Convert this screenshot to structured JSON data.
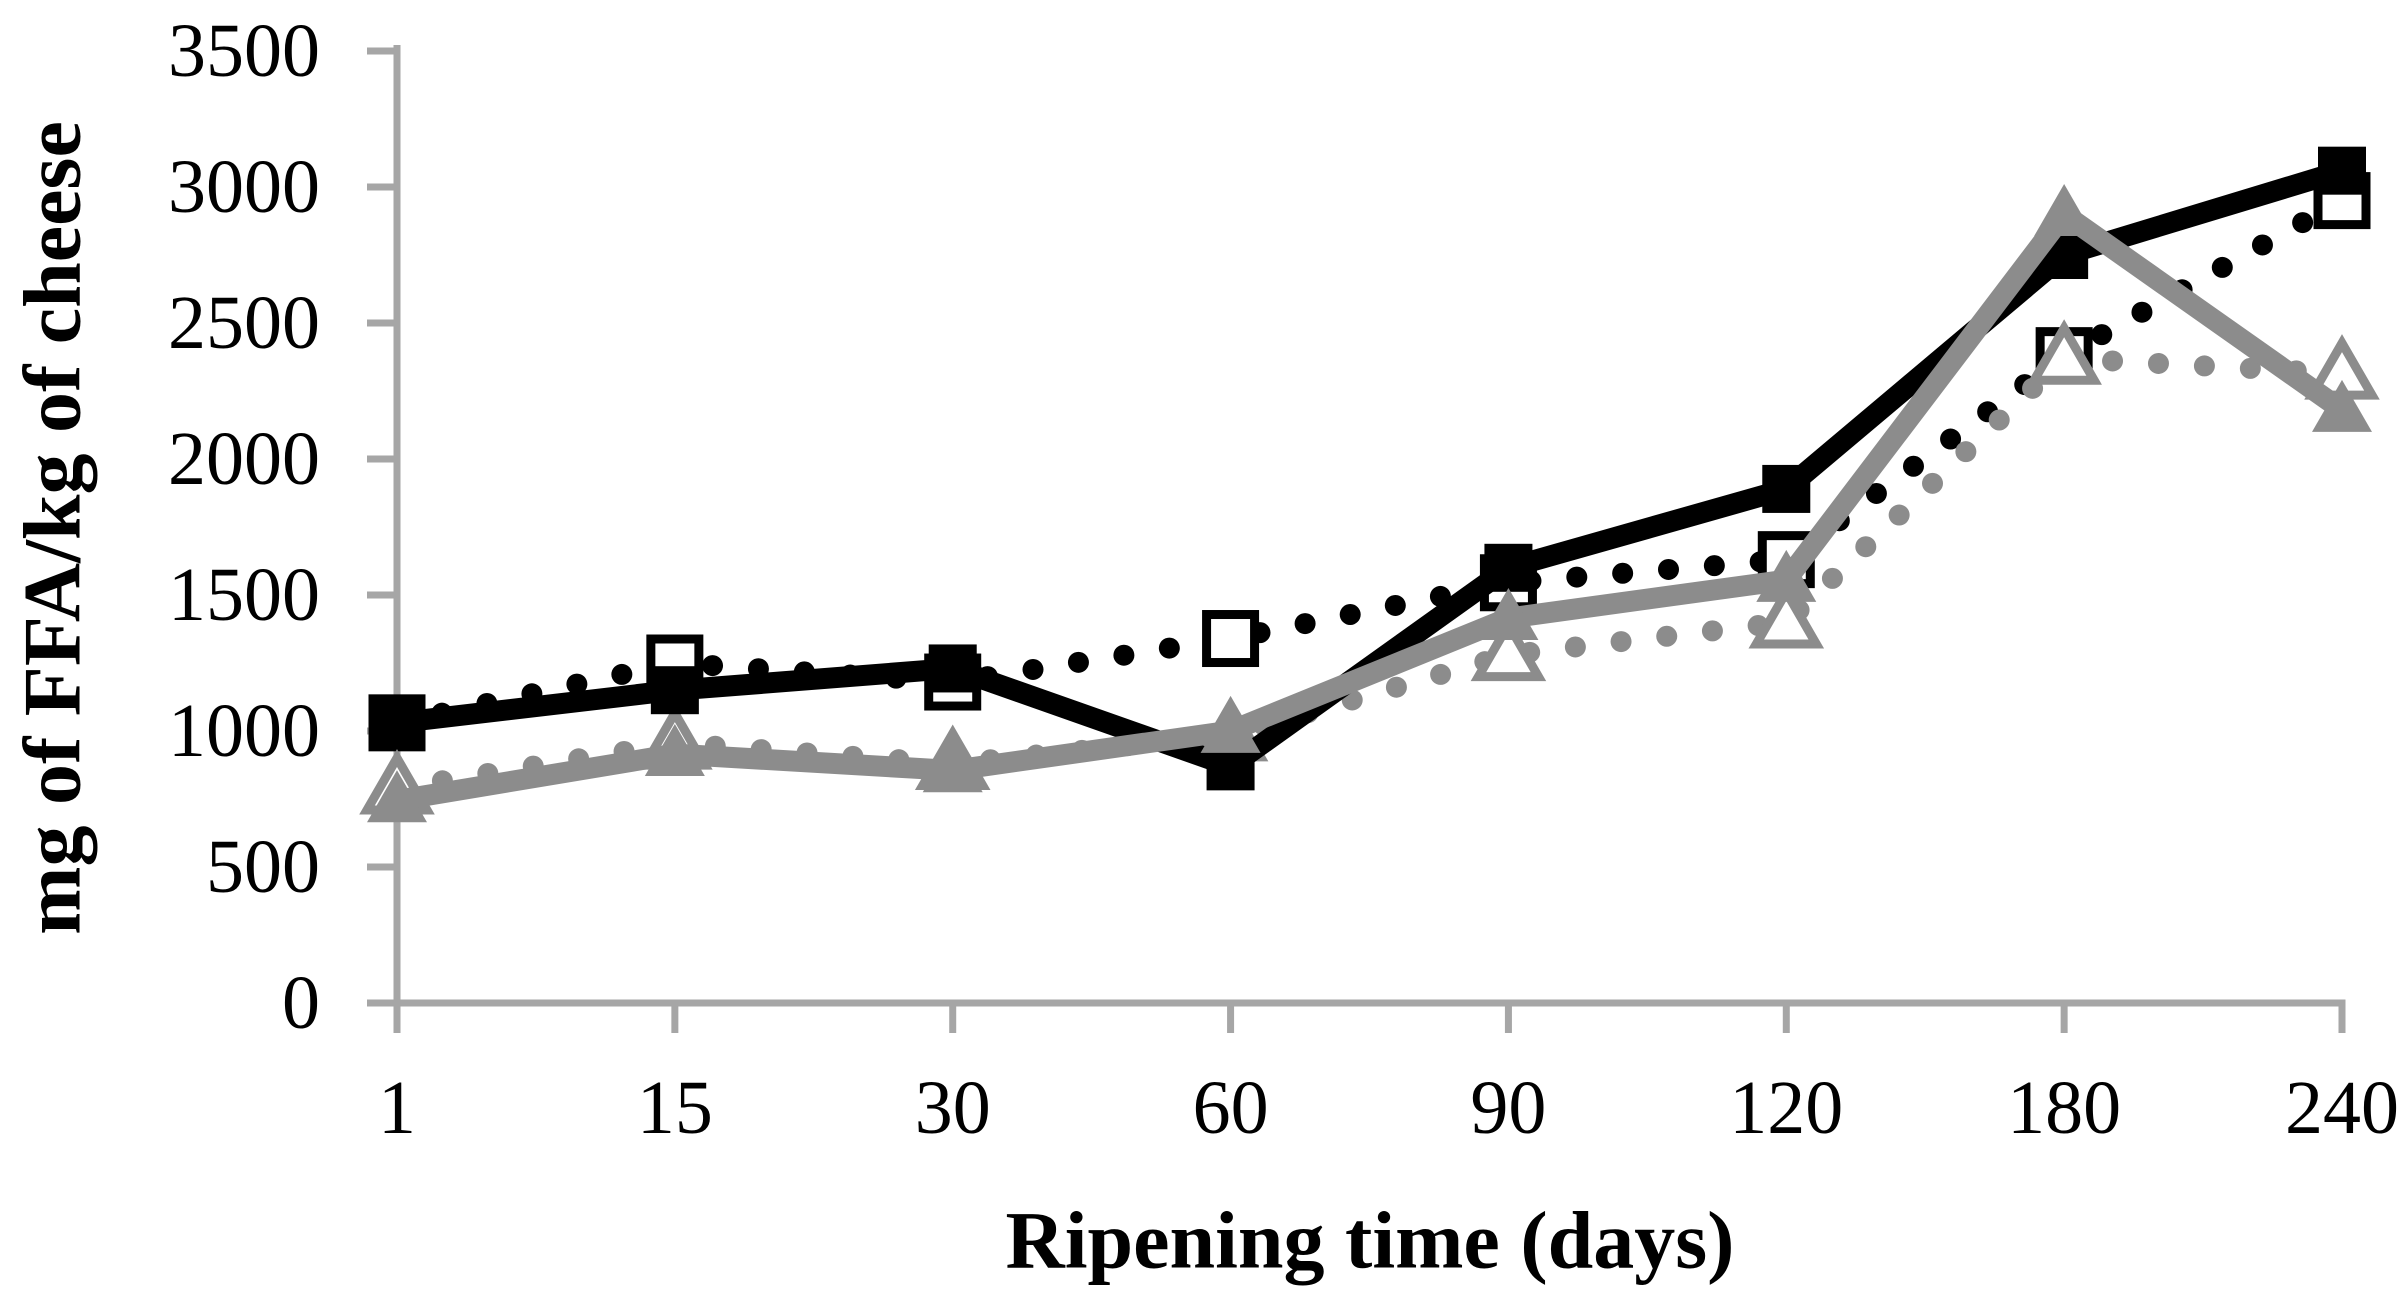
{
  "chart_data": {
    "type": "line",
    "title": "",
    "xlabel": "Ripening time (days)",
    "ylabel": "mg of FFA/kg of cheese",
    "categories": [
      1,
      15,
      30,
      60,
      90,
      120,
      180,
      240
    ],
    "yticks": [
      0,
      500,
      1000,
      1500,
      2000,
      2500,
      3000,
      3500
    ],
    "ylim": [
      0,
      3500
    ],
    "grid": false,
    "legend_position": "none",
    "axis_color": "#A6A6A6",
    "background_color": "#FFFFFF",
    "series": [
      {
        "name": "black dotted - open squares",
        "line": "dotted",
        "marker": "open-square",
        "color": "#000000",
        "values": [
          1030,
          1250,
          1180,
          1340,
          1545,
          1630,
          2380,
          2950
        ]
      },
      {
        "name": "gray dotted - open triangles",
        "line": "dotted",
        "marker": "open-triangle",
        "color": "#8C8C8C",
        "values": [
          790,
          955,
          880,
          985,
          1280,
          1400,
          2370,
          2315
        ]
      },
      {
        "name": "black solid - filled squares",
        "line": "solid",
        "marker": "filled-square",
        "color": "#000000",
        "values": [
          1030,
          1150,
          1230,
          870,
          1600,
          1890,
          2750,
          3060
        ]
      },
      {
        "name": "gray solid - filled triangles",
        "line": "solid",
        "marker": "filled-triangle",
        "color": "#8C8C8C",
        "values": [
          745,
          915,
          855,
          1000,
          1415,
          1555,
          2900,
          2180
        ]
      }
    ]
  }
}
